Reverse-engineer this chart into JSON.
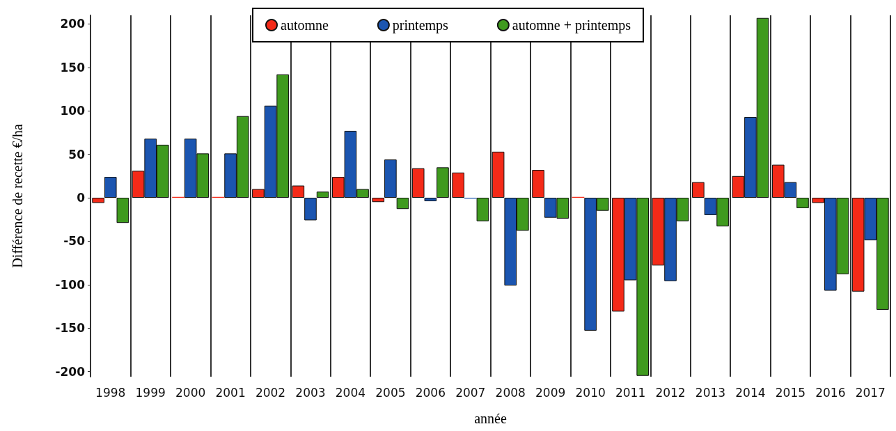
{
  "chart_data": {
    "type": "bar",
    "xlabel": "année",
    "ylabel": "Différence de recette €/ha",
    "categories": [
      "1998",
      "1999",
      "2000",
      "2001",
      "2002",
      "2003",
      "2004",
      "2005",
      "2006",
      "2007",
      "2008",
      "2009",
      "2010",
      "2011",
      "2012",
      "2013",
      "2014",
      "2015",
      "2016",
      "2017"
    ],
    "series": [
      {
        "name": "automne",
        "color": "#f42a18",
        "values": [
          -6,
          31,
          1,
          1,
          10,
          14,
          24,
          -5,
          34,
          29,
          53,
          32,
          1,
          -131,
          -78,
          18,
          25,
          38,
          -6,
          -108
        ]
      },
      {
        "name": "printemps",
        "color": "#1b55b0",
        "values": [
          24,
          68,
          68,
          51,
          106,
          -26,
          77,
          44,
          -4,
          -1,
          -101,
          -23,
          -153,
          -95,
          -96,
          -20,
          93,
          18,
          -107,
          -49
        ]
      },
      {
        "name": "automne + printemps",
        "color": "#3f9a1e",
        "values": [
          -29,
          61,
          51,
          94,
          142,
          7,
          10,
          -13,
          35,
          -27,
          -38,
          -24,
          -15,
          -205,
          -27,
          -33,
          207,
          -12,
          -88,
          -129
        ]
      }
    ],
    "ylim": [
      -206,
      210
    ],
    "yticks": [
      -200,
      -150,
      -100,
      -50,
      0,
      50,
      100,
      150,
      200
    ],
    "grid": "x",
    "legend": "top"
  }
}
